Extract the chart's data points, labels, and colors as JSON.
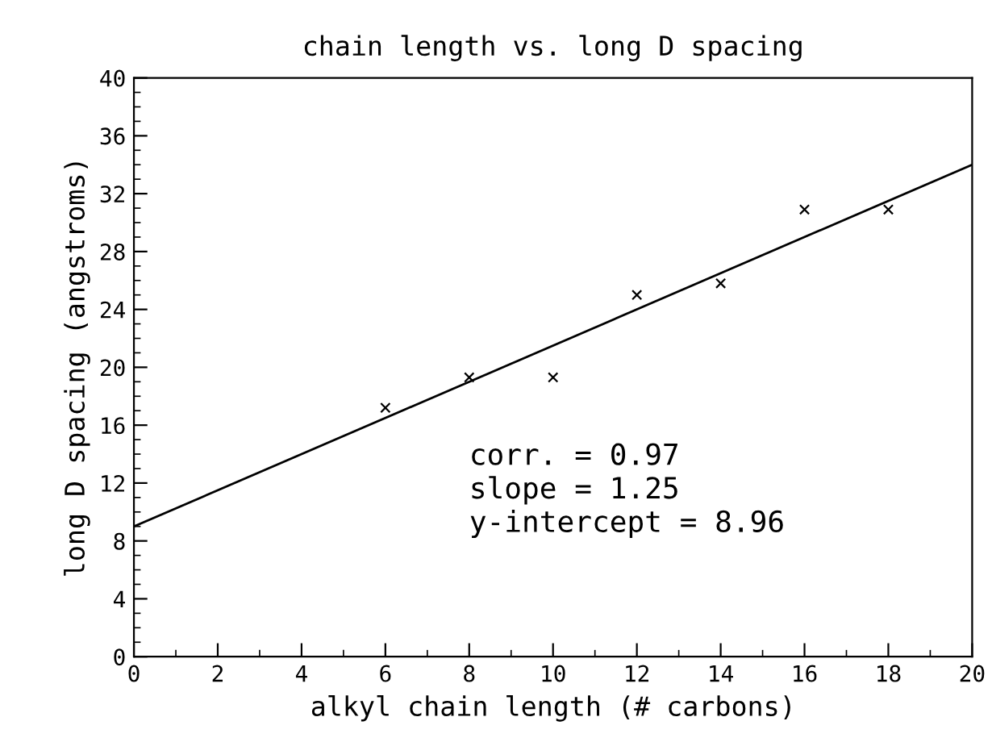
{
  "chart_data": {
    "type": "scatter",
    "title": "chain length vs. long D spacing",
    "xlabel": "alkyl chain length (# carbons)",
    "ylabel": "long D spacing (angstroms)",
    "series": [
      {
        "color": "#000000",
        "marker": "cross",
        "x": [
          6,
          8,
          10,
          12,
          14,
          16,
          18
        ],
        "values": [
          17.2,
          19.3,
          19.3,
          25.0,
          25.8,
          30.9,
          30.9
        ]
      },
      {
        "type": "line",
        "color": "#000000",
        "marker": "none",
        "line_style": "solid",
        "x": [
          0,
          20
        ],
        "values": [
          9.0,
          34.0
        ]
      }
    ],
    "xlim": [
      0,
      20
    ],
    "ylim": [
      0,
      40
    ],
    "xticks": [
      0,
      2,
      4,
      6,
      8,
      10,
      12,
      14,
      16,
      18,
      20
    ],
    "yticks": [
      0,
      4,
      8,
      12,
      16,
      20,
      24,
      28,
      32,
      36,
      40
    ],
    "grid": false,
    "legend": false,
    "annotations": [
      "corr. = 0.97",
      "slope = 1.25",
      "y-intercept = 8.96"
    ]
  }
}
